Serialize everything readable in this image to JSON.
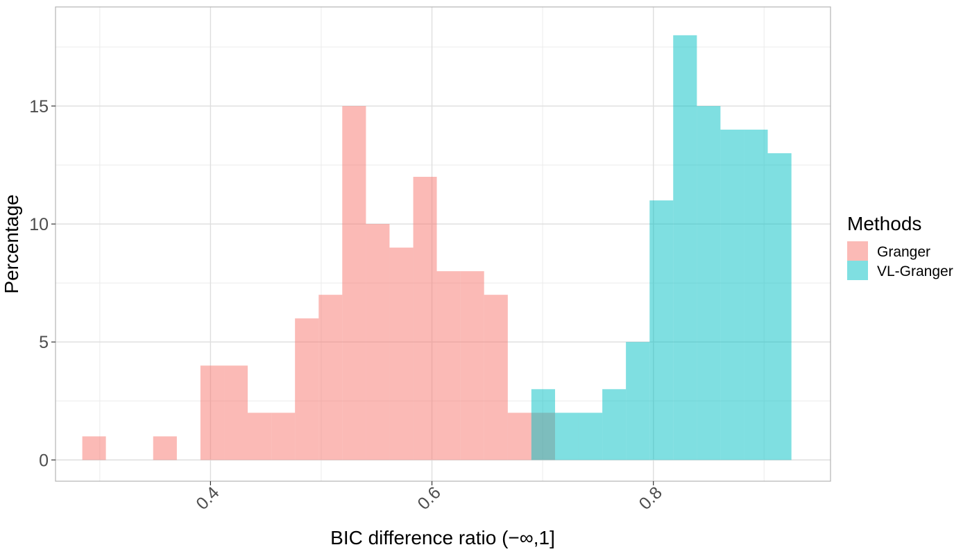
{
  "chart_data": {
    "type": "histogram",
    "title": "",
    "xlabel": "BIC difference ratio (−∞,1]",
    "ylabel": "Percentage",
    "xlim": [
      0.26,
      0.96
    ],
    "ylim": [
      -0.9,
      19.2
    ],
    "x_ticks": [
      {
        "value": 0.4,
        "label": "0.4"
      },
      {
        "value": 0.6,
        "label": "0.6"
      },
      {
        "value": 0.8,
        "label": "0.8"
      }
    ],
    "y_ticks": [
      {
        "value": 0,
        "label": "0"
      },
      {
        "value": 5,
        "label": "5"
      },
      {
        "value": 10,
        "label": "10"
      },
      {
        "value": 15,
        "label": "15"
      }
    ],
    "grid": true,
    "bin_width": 0.02135,
    "legend": {
      "title": "Methods",
      "placement": "right"
    },
    "series": [
      {
        "name": "Granger",
        "color": "#F8766D",
        "opacity": 0.5,
        "bins": [
          {
            "x0": 0.2842,
            "x1": 0.3055,
            "value": 1
          },
          {
            "x0": 0.3482,
            "x1": 0.3696,
            "value": 1
          },
          {
            "x0": 0.3909,
            "x1": 0.4123,
            "value": 4
          },
          {
            "x0": 0.4123,
            "x1": 0.4336,
            "value": 4
          },
          {
            "x0": 0.4336,
            "x1": 0.455,
            "value": 2
          },
          {
            "x0": 0.455,
            "x1": 0.4763,
            "value": 2
          },
          {
            "x0": 0.4763,
            "x1": 0.4977,
            "value": 6
          },
          {
            "x0": 0.4977,
            "x1": 0.519,
            "value": 7
          },
          {
            "x0": 0.519,
            "x1": 0.5404,
            "value": 15
          },
          {
            "x0": 0.5404,
            "x1": 0.5617,
            "value": 10
          },
          {
            "x0": 0.5617,
            "x1": 0.5831,
            "value": 9
          },
          {
            "x0": 0.5831,
            "x1": 0.6044,
            "value": 12
          },
          {
            "x0": 0.6044,
            "x1": 0.6258,
            "value": 8
          },
          {
            "x0": 0.6258,
            "x1": 0.6471,
            "value": 8
          },
          {
            "x0": 0.6471,
            "x1": 0.6685,
            "value": 7
          },
          {
            "x0": 0.6685,
            "x1": 0.6898,
            "value": 2
          },
          {
            "x0": 0.6898,
            "x1": 0.7112,
            "value": 2
          }
        ]
      },
      {
        "name": "VL-Granger",
        "color": "#00BFC4",
        "opacity": 0.5,
        "bins": [
          {
            "x0": 0.6898,
            "x1": 0.7112,
            "value": 3
          },
          {
            "x0": 0.7112,
            "x1": 0.7325,
            "value": 2
          },
          {
            "x0": 0.7325,
            "x1": 0.7539,
            "value": 2
          },
          {
            "x0": 0.7539,
            "x1": 0.7752,
            "value": 3
          },
          {
            "x0": 0.7752,
            "x1": 0.7966,
            "value": 5
          },
          {
            "x0": 0.7966,
            "x1": 0.8179,
            "value": 11
          },
          {
            "x0": 0.8179,
            "x1": 0.8393,
            "value": 18
          },
          {
            "x0": 0.8393,
            "x1": 0.8606,
            "value": 15
          },
          {
            "x0": 0.8606,
            "x1": 0.882,
            "value": 14
          },
          {
            "x0": 0.882,
            "x1": 0.9033,
            "value": 14
          },
          {
            "x0": 0.9033,
            "x1": 0.9247,
            "value": 13
          }
        ]
      }
    ]
  }
}
